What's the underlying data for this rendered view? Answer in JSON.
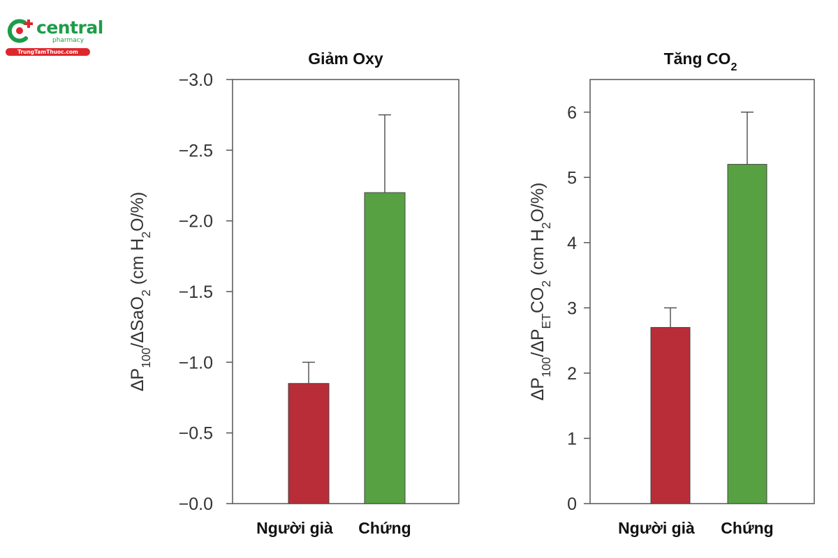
{
  "brand": {
    "name": "central",
    "tagline": "pharmacy",
    "url": "TrungTamThuoc.com",
    "colors": {
      "green": "#1e9c49",
      "red": "#e0262d"
    }
  },
  "chart_data": [
    {
      "type": "bar",
      "title": "Giảm Oxy",
      "categories": [
        "Người già",
        "Chứng"
      ],
      "values": [
        -0.85,
        -2.2
      ],
      "error": [
        0.15,
        0.55
      ],
      "colors": [
        "#b82d38",
        "#57a143"
      ],
      "ylabel": "ΔP100/ΔSaO2 (cm H2O/%)",
      "ylabel_parts": [
        {
          "t": "ΔP"
        },
        {
          "t": "100",
          "sub": true
        },
        {
          "t": "/ΔSaO"
        },
        {
          "t": "2",
          "sub": true
        },
        {
          "t": " (cm H"
        },
        {
          "t": "2",
          "sub": true
        },
        {
          "t": "O/%)"
        }
      ],
      "ylim": [
        0,
        -3.0
      ],
      "yticks": [
        -0.0,
        -0.5,
        -1.0,
        -1.5,
        -2.0,
        -2.5,
        -3.0
      ],
      "yticklabels": [
        "−0.0",
        "−0.5",
        "−1.0",
        "−1.5",
        "−2.0",
        "−2.5",
        "−3.0"
      ],
      "inverted_axis": true
    },
    {
      "type": "bar",
      "title": "Tăng CO2",
      "title_parts": [
        {
          "t": "Tăng CO"
        },
        {
          "t": "2",
          "sub": true
        }
      ],
      "categories": [
        "Người già",
        "Chứng"
      ],
      "values": [
        2.7,
        5.2
      ],
      "error": [
        0.3,
        0.8
      ],
      "colors": [
        "#b82d38",
        "#57a143"
      ],
      "ylabel": "ΔP100/ΔPETCO2 (cm H2O/%)",
      "ylabel_parts": [
        {
          "t": "ΔP"
        },
        {
          "t": "100",
          "sub": true
        },
        {
          "t": "/ΔP"
        },
        {
          "t": "ET",
          "sub": true
        },
        {
          "t": "CO"
        },
        {
          "t": "2",
          "sub": true
        },
        {
          "t": " (cm H"
        },
        {
          "t": "2",
          "sub": true
        },
        {
          "t": "O/%)"
        }
      ],
      "ylim": [
        0,
        6.5
      ],
      "yticks": [
        0,
        1,
        2,
        3,
        4,
        5,
        6
      ],
      "yticklabels": [
        "0",
        "1",
        "2",
        "3",
        "4",
        "5",
        "6"
      ],
      "inverted_axis": false
    }
  ]
}
